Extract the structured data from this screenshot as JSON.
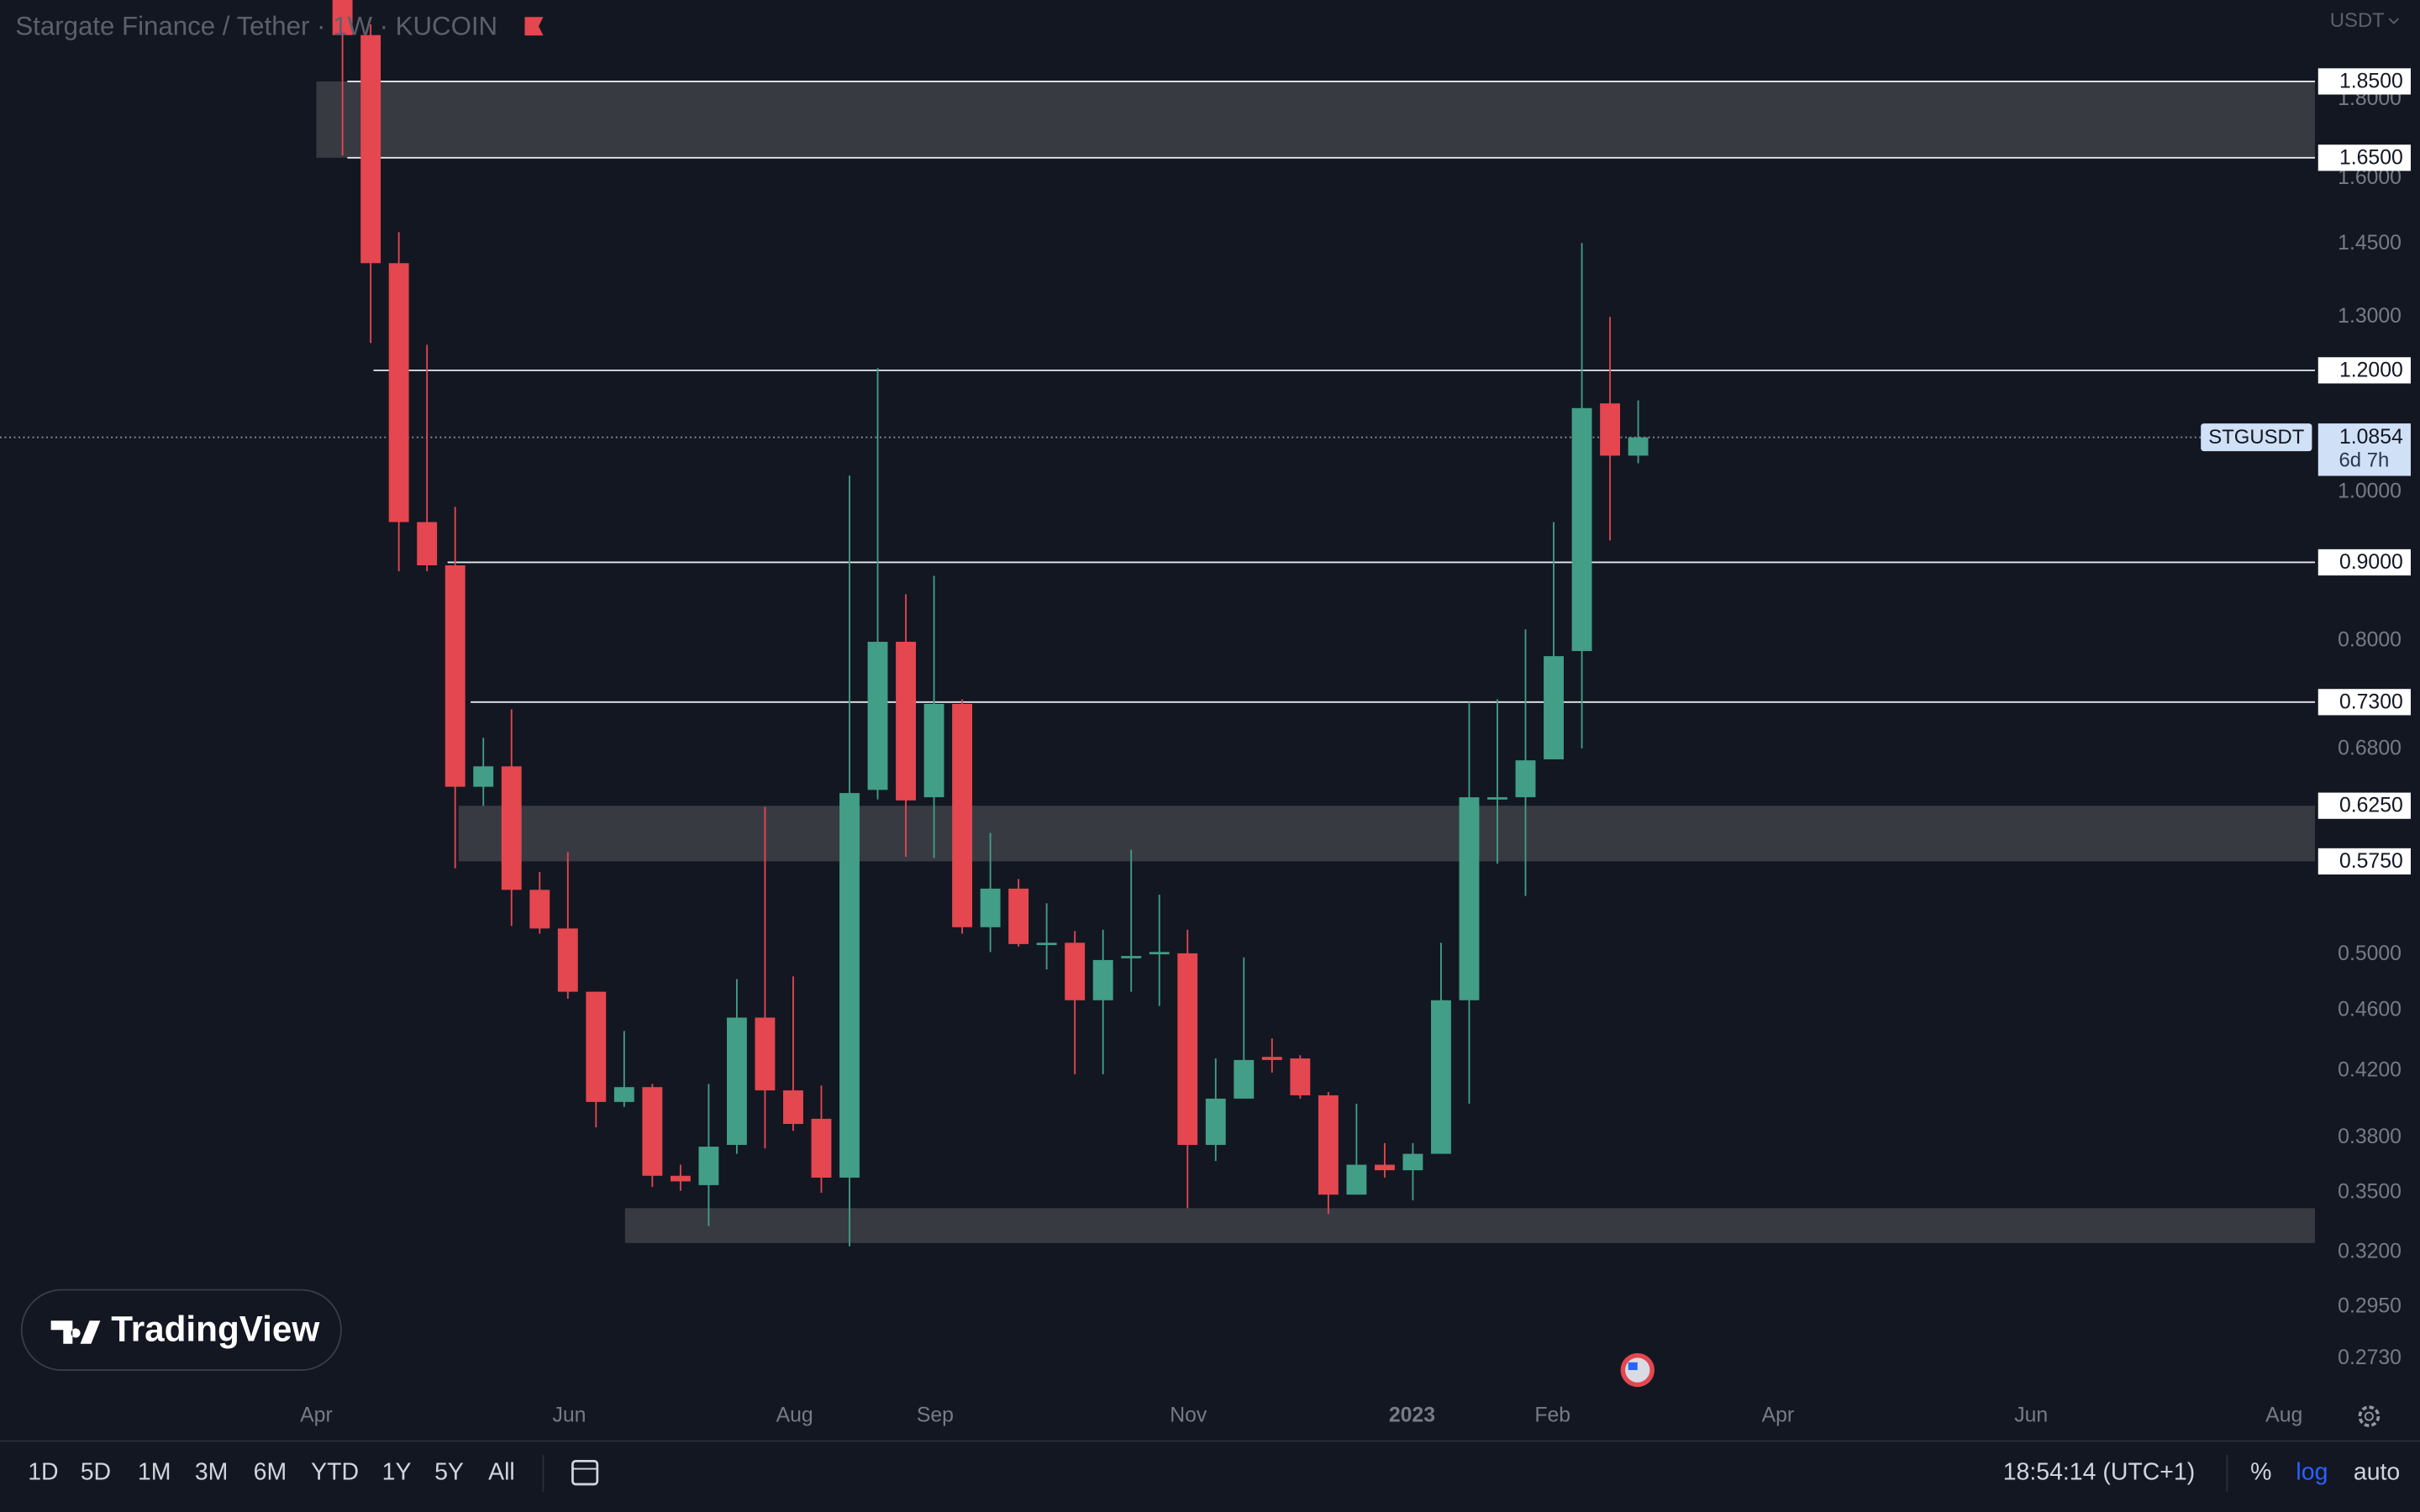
{
  "header": {
    "title": "Stargate Finance / Tether · 1W · KUCOIN",
    "currency": "USDT"
  },
  "chart_data": {
    "type": "candlestick",
    "categories": [
      null,
      null,
      null,
      null,
      null,
      null,
      null,
      null,
      null,
      null,
      null,
      null,
      null,
      null,
      null,
      null,
      null,
      null,
      null,
      null,
      null,
      null,
      null,
      null,
      null,
      null,
      null,
      null,
      null,
      null,
      null,
      null,
      null,
      null,
      null,
      null,
      null,
      null,
      null,
      null,
      null,
      null,
      null,
      null,
      null,
      null,
      null
    ],
    "open": [
      2.135,
      1.983,
      1.409,
      0.956,
      0.896,
      0.643,
      0.663,
      0.551,
      0.52,
      0.473,
      0.401,
      0.41,
      0.359,
      0.354,
      0.376,
      0.455,
      0.408,
      0.391,
      0.358,
      0.64,
      0.799,
      0.633,
      0.728,
      0.521,
      0.552,
      0.508,
      0.509,
      0.467,
      0.498,
      0.501,
      0.501,
      0.376,
      0.403,
      0.429,
      0.428,
      0.405,
      0.349,
      0.365,
      0.362,
      0.371,
      0.467,
      0.631,
      0.633,
      0.67,
      0.788,
      1.142,
      1.056
    ],
    "high": [
      2.135,
      2.015,
      1.476,
      1.247,
      0.978,
      0.692,
      0.722,
      0.566,
      0.583,
      0.473,
      0.446,
      0.412,
      0.365,
      0.412,
      0.482,
      0.624,
      0.484,
      0.411,
      1.025,
      1.204,
      0.858,
      0.882,
      0.733,
      0.6,
      0.56,
      0.54,
      0.518,
      0.519,
      0.585,
      0.547,
      0.519,
      0.428,
      0.498,
      0.441,
      0.43,
      0.407,
      0.4,
      0.377,
      0.377,
      0.509,
      0.73,
      0.733,
      0.814,
      0.956,
      1.452,
      1.3,
      1.147
    ],
    "low": [
      1.656,
      1.25,
      0.888,
      0.888,
      0.569,
      0.625,
      0.522,
      0.516,
      0.468,
      0.386,
      0.398,
      0.353,
      0.351,
      0.333,
      0.371,
      0.374,
      0.384,
      0.35,
      0.323,
      0.631,
      0.579,
      0.578,
      0.516,
      0.502,
      0.506,
      0.489,
      0.418,
      0.418,
      0.473,
      0.463,
      0.342,
      0.367,
      0.403,
      0.419,
      0.403,
      0.339,
      0.349,
      0.358,
      0.346,
      0.371,
      0.4,
      0.573,
      0.546,
      0.67,
      0.681,
      0.93,
      1.044
    ],
    "close": [
      1.983,
      1.409,
      0.956,
      0.896,
      0.643,
      0.663,
      0.551,
      0.52,
      0.473,
      0.401,
      0.41,
      0.359,
      0.356,
      0.375,
      0.455,
      0.408,
      0.388,
      0.358,
      0.637,
      0.799,
      0.63,
      0.728,
      0.521,
      0.552,
      0.508,
      0.509,
      0.467,
      0.496,
      0.499,
      0.502,
      0.376,
      0.403,
      0.427,
      0.427,
      0.405,
      0.349,
      0.365,
      0.362,
      0.371,
      0.467,
      0.633,
      0.633,
      0.669,
      0.782,
      1.134,
      1.056,
      1.0854
    ],
    "colors": {
      "up": "#429e87",
      "down": "#e4474f"
    },
    "log_scale": true,
    "ylim": [
      0.258,
      2.09
    ],
    "yticks": [
      {
        "value": 1.8,
        "label": "1.8000"
      },
      {
        "value": 1.6,
        "label": "1.6000"
      },
      {
        "value": 1.45,
        "label": "1.4500"
      },
      {
        "value": 1.3,
        "label": "1.3000"
      },
      {
        "value": 1.0,
        "label": "1.0000"
      },
      {
        "value": 0.8,
        "label": "0.8000"
      },
      {
        "value": 0.68,
        "label": "0.6800"
      },
      {
        "value": 0.5,
        "label": "0.5000"
      },
      {
        "value": 0.46,
        "label": "0.4600"
      },
      {
        "value": 0.42,
        "label": "0.4200"
      },
      {
        "value": 0.38,
        "label": "0.3800"
      },
      {
        "value": 0.35,
        "label": "0.3500"
      },
      {
        "value": 0.32,
        "label": "0.3200"
      },
      {
        "value": 0.295,
        "label": "0.2950"
      },
      {
        "value": 0.273,
        "label": "0.2730"
      }
    ],
    "xlim": [
      -12.16,
      70.03
    ],
    "xticks": [
      {
        "value": -0.93,
        "label": "Apr"
      },
      {
        "value": 8.05,
        "label": "Jun"
      },
      {
        "value": 16.05,
        "label": "Aug"
      },
      {
        "value": 21.04,
        "label": "Sep"
      },
      {
        "value": 30.03,
        "label": "Nov"
      },
      {
        "value": 37.97,
        "label": "2023"
      },
      {
        "value": 42.96,
        "label": "Feb"
      },
      {
        "value": 50.96,
        "label": "Apr"
      },
      {
        "value": 59.95,
        "label": "Jun"
      },
      {
        "value": 68.93,
        "label": "Aug"
      }
    ],
    "zones": [
      {
        "low": 1.65,
        "high": 1.85,
        "from": -0.93
      },
      {
        "low": 0.575,
        "high": 0.625,
        "from": 4.12
      },
      {
        "low": 0.3246,
        "high": 0.342,
        "from": 10.03
      }
    ],
    "levels": [
      {
        "value": 1.85,
        "label": "1.8500",
        "from": 0.17
      },
      {
        "value": 1.65,
        "label": "1.6500",
        "from": 0.17
      },
      {
        "value": 1.2,
        "label": "1.2000",
        "from": 1.1
      },
      {
        "value": 0.9,
        "label": "0.9000",
        "from": 3.73
      },
      {
        "value": 0.73,
        "label": "0.7300",
        "from": 4.55
      },
      {
        "value": 0.625,
        "label": "0.6250"
      },
      {
        "value": 0.575,
        "label": "0.5750"
      }
    ],
    "symbol": "STGUSDT",
    "last_price": 1.0854,
    "countdown": "6d 7h"
  },
  "logo": "TradingView",
  "toolbar": {
    "ranges": [
      "1D",
      "5D",
      "1M",
      "3M",
      "6M",
      "YTD",
      "1Y",
      "5Y",
      "All"
    ],
    "time": "18:54:14 (UTC+1)",
    "percent": "%",
    "log": "log",
    "auto": "auto"
  }
}
